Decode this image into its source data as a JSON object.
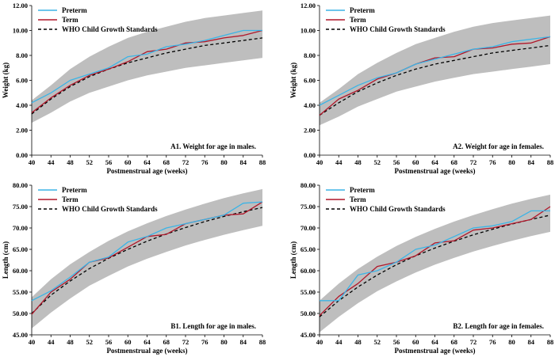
{
  "colors": {
    "preterm": "#3bb4e6",
    "term": "#b0172a",
    "who": "#000000",
    "band": "#bebebe"
  },
  "legend": {
    "preterm": "Preterm",
    "term": "Term",
    "who": "WHO Child Growth Standards"
  },
  "chart_data": [
    {
      "id": "A1",
      "type": "line",
      "caption": "A1. Weight for age in males.",
      "xlabel": "Postmenstrual age (weeks)",
      "ylabel": "Weight (kg)",
      "xlim": [
        40,
        88
      ],
      "ylim": [
        0,
        12
      ],
      "xticks": [
        40,
        44,
        48,
        52,
        56,
        60,
        64,
        68,
        72,
        76,
        80,
        84,
        88
      ],
      "yticks": [
        "0.00",
        "2.00",
        "4.00",
        "6.00",
        "8.00",
        "10.00",
        "12.00"
      ],
      "x": [
        40,
        44,
        48,
        52,
        56,
        60,
        64,
        68,
        72,
        76,
        80,
        84,
        88
      ],
      "band_low": [
        2.6,
        3.4,
        4.3,
        5.0,
        5.5,
        6.0,
        6.4,
        6.7,
        7.0,
        7.2,
        7.4,
        7.6,
        7.8
      ],
      "band_high": [
        4.4,
        5.6,
        6.9,
        7.9,
        8.7,
        9.4,
        9.9,
        10.3,
        10.7,
        11.0,
        11.2,
        11.4,
        11.6
      ],
      "series": [
        {
          "name": "Preterm",
          "values": [
            4.2,
            5.0,
            6.0,
            6.5,
            7.0,
            7.9,
            8.1,
            8.7,
            8.9,
            9.2,
            9.6,
            10.0,
            10.0
          ]
        },
        {
          "name": "Term",
          "values": [
            3.4,
            4.6,
            5.6,
            6.4,
            6.9,
            7.5,
            8.3,
            8.5,
            9.0,
            9.1,
            9.4,
            9.6,
            10.0
          ]
        },
        {
          "name": "WHO Child Growth Standards",
          "values": [
            3.3,
            4.5,
            5.5,
            6.3,
            6.9,
            7.4,
            7.8,
            8.2,
            8.5,
            8.8,
            9.0,
            9.2,
            9.4
          ]
        }
      ]
    },
    {
      "id": "A2",
      "type": "line",
      "caption": "A2. Weight for age in females.",
      "xlabel": "Postmenstrual age (weeks)",
      "ylabel": "Weight (kg)",
      "xlim": [
        40,
        88
      ],
      "ylim": [
        0,
        12
      ],
      "xticks": [
        40,
        44,
        48,
        52,
        56,
        60,
        64,
        68,
        72,
        76,
        80,
        84,
        88
      ],
      "yticks": [
        "0.00",
        "2.00",
        "4.00",
        "6.00",
        "8.00",
        "10.00",
        "12.00"
      ],
      "x": [
        40,
        44,
        48,
        52,
        56,
        60,
        64,
        68,
        72,
        76,
        80,
        84,
        88
      ],
      "band_low": [
        2.4,
        3.1,
        3.9,
        4.5,
        5.1,
        5.5,
        5.9,
        6.2,
        6.5,
        6.7,
        6.9,
        7.1,
        7.3
      ],
      "band_high": [
        4.2,
        5.3,
        6.5,
        7.4,
        8.2,
        8.9,
        9.4,
        9.9,
        10.3,
        10.6,
        10.8,
        11.0,
        11.2
      ],
      "series": [
        {
          "name": "Preterm",
          "values": [
            4.0,
            4.8,
            5.6,
            6.2,
            6.6,
            7.3,
            7.7,
            8.1,
            8.5,
            8.7,
            9.1,
            9.3,
            9.5
          ]
        },
        {
          "name": "Term",
          "values": [
            3.2,
            4.5,
            5.2,
            6.1,
            6.6,
            7.3,
            7.8,
            7.9,
            8.5,
            8.6,
            8.9,
            9.0,
            9.5
          ]
        },
        {
          "name": "WHO Child Growth Standards",
          "values": [
            3.2,
            4.2,
            5.1,
            5.8,
            6.4,
            6.9,
            7.3,
            7.6,
            7.9,
            8.2,
            8.4,
            8.6,
            8.8
          ]
        }
      ]
    },
    {
      "id": "B1",
      "type": "line",
      "caption": "B1. Length for age in males.",
      "xlabel": "Postmenstrual age (weeks)",
      "ylabel": "Length (cm)",
      "xlim": [
        40,
        88
      ],
      "ylim": [
        45,
        80
      ],
      "xticks": [
        40,
        44,
        48,
        52,
        56,
        60,
        64,
        68,
        72,
        76,
        80,
        84,
        88
      ],
      "yticks": [
        "45.00",
        "50.00",
        "55.00",
        "60.00",
        "65.00",
        "70.00",
        "75.00",
        "80.00"
      ],
      "x": [
        40,
        44,
        48,
        52,
        56,
        60,
        64,
        68,
        72,
        76,
        80,
        84,
        88
      ],
      "band_low": [
        46.5,
        50.2,
        53.5,
        56.5,
        58.8,
        61.0,
        62.8,
        64.4,
        65.9,
        67.2,
        68.4,
        69.5,
        70.5
      ],
      "band_high": [
        53.8,
        58.0,
        61.5,
        64.4,
        67.0,
        69.2,
        71.1,
        72.8,
        74.3,
        75.7,
        77.0,
        78.1,
        79.1
      ],
      "series": [
        {
          "name": "Preterm",
          "values": [
            53.0,
            55.3,
            58.5,
            62.0,
            63.2,
            66.7,
            68.0,
            70.0,
            71.0,
            72.0,
            73.0,
            75.8,
            76.1
          ]
        },
        {
          "name": "Term",
          "values": [
            49.8,
            55.0,
            58.0,
            62.0,
            63.0,
            65.5,
            68.0,
            68.5,
            71.0,
            72.0,
            73.0,
            73.3,
            76.1
          ]
        },
        {
          "name": "WHO Child Growth Standards",
          "values": [
            50.0,
            54.3,
            57.6,
            60.5,
            62.9,
            65.0,
            66.9,
            68.6,
            70.1,
            71.5,
            72.7,
            73.8,
            74.8
          ]
        }
      ]
    },
    {
      "id": "B2",
      "type": "line",
      "caption": "B2. Length for age in females.",
      "xlabel": "Postmenstrual age (weeks)",
      "ylabel": "Length (cm)",
      "xlim": [
        40,
        88
      ],
      "ylim": [
        45,
        80
      ],
      "xticks": [
        40,
        44,
        48,
        52,
        56,
        60,
        64,
        68,
        72,
        76,
        80,
        84,
        88
      ],
      "yticks": [
        "45.00",
        "50.00",
        "55.00",
        "60.00",
        "65.00",
        "70.00",
        "75.00",
        "80.00"
      ],
      "x": [
        40,
        44,
        48,
        52,
        56,
        60,
        64,
        68,
        72,
        76,
        80,
        84,
        88
      ],
      "band_low": [
        45.6,
        49.2,
        52.4,
        55.2,
        57.5,
        59.6,
        61.4,
        63.0,
        64.5,
        65.8,
        67.0,
        68.1,
        69.1
      ],
      "band_high": [
        53.0,
        57.0,
        60.4,
        63.3,
        65.8,
        67.9,
        69.8,
        71.5,
        73.0,
        74.4,
        75.7,
        76.8,
        77.8
      ],
      "series": [
        {
          "name": "Preterm",
          "values": [
            53.0,
            53.0,
            59.0,
            60.0,
            62.0,
            65.0,
            66.0,
            68.0,
            70.0,
            70.5,
            71.5,
            74.0,
            74.0
          ]
        },
        {
          "name": "Term",
          "values": [
            49.5,
            54.0,
            57.0,
            61.0,
            62.0,
            63.5,
            66.5,
            67.0,
            69.5,
            70.0,
            71.0,
            72.0,
            75.0
          ]
        },
        {
          "name": "WHO Child Growth Standards",
          "values": [
            49.2,
            53.0,
            56.2,
            59.0,
            61.4,
            63.5,
            65.3,
            66.9,
            68.4,
            69.7,
            70.9,
            72.0,
            73.0
          ]
        }
      ]
    }
  ]
}
